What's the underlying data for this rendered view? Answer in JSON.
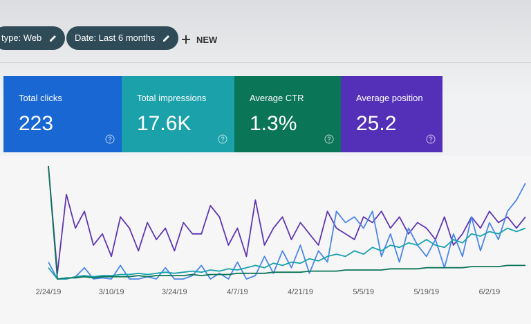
{
  "filters": {
    "type_chip": "type: Web",
    "date_chip": "Date: Last 6 months",
    "new_button": "NEW"
  },
  "metrics": [
    {
      "label": "Total clicks",
      "value": "223",
      "color": "#1967d2"
    },
    {
      "label": "Total impressions",
      "value": "17.6K",
      "color": "#1ba1aa"
    },
    {
      "label": "Average CTR",
      "value": "1.3%",
      "color": "#0b7557"
    },
    {
      "label": "Average position",
      "value": "25.2",
      "color": "#5430b8"
    }
  ],
  "chart_data": {
    "type": "line",
    "categories": [
      "2/24/19",
      null,
      null,
      null,
      null,
      null,
      null,
      "3/10/19",
      null,
      null,
      null,
      null,
      null,
      null,
      "3/24/19",
      null,
      null,
      null,
      null,
      null,
      null,
      "4/7/19",
      null,
      null,
      null,
      null,
      null,
      null,
      "4/21/19",
      null,
      null,
      null,
      null,
      null,
      null,
      "5/5/19",
      null,
      null,
      null,
      null,
      null,
      null,
      "5/19/19",
      null,
      null,
      null,
      null,
      null,
      null,
      "6/2/19",
      null,
      null,
      null,
      null
    ],
    "series": [
      {
        "color": "#5e35b1",
        "values": [
          100,
          5,
          75,
          45,
          60,
          30,
          40,
          20,
          55,
          45,
          25,
          50,
          35,
          45,
          25,
          50,
          40,
          40,
          65,
          55,
          30,
          45,
          20,
          70,
          30,
          45,
          55,
          35,
          50,
          40,
          30,
          60,
          45,
          40,
          35,
          55,
          50,
          60,
          45,
          55,
          40,
          50,
          45,
          35,
          55,
          30,
          40,
          55,
          45,
          60,
          50,
          55,
          45,
          55
        ]
      },
      {
        "color": "#4a86e8",
        "values": [
          15,
          0,
          0,
          2,
          10,
          0,
          1,
          0,
          12,
          0,
          0,
          2,
          0,
          10,
          0,
          0,
          3,
          12,
          0,
          5,
          0,
          15,
          0,
          3,
          20,
          5,
          25,
          10,
          30,
          5,
          25,
          15,
          60,
          50,
          55,
          45,
          60,
          20,
          40,
          15,
          45,
          30,
          20,
          35,
          10,
          40,
          20,
          55,
          25,
          50,
          35,
          60,
          70,
          85
        ]
      },
      {
        "color": "#17a2ad",
        "values": [
          10,
          0,
          0,
          2,
          3,
          2,
          3,
          3,
          4,
          4,
          5,
          4,
          5,
          6,
          5,
          6,
          7,
          6,
          8,
          7,
          9,
          8,
          10,
          12,
          10,
          14,
          12,
          15,
          14,
          18,
          16,
          20,
          22,
          20,
          25,
          22,
          28,
          25,
          30,
          28,
          32,
          30,
          35,
          30,
          28,
          35,
          32,
          40,
          38,
          42,
          40,
          45,
          42,
          45
        ]
      },
      {
        "color": "#0b7557",
        "values": [
          100,
          0,
          1,
          1,
          2,
          1,
          2,
          2,
          2,
          2,
          3,
          2,
          3,
          3,
          3,
          3,
          4,
          3,
          4,
          4,
          4,
          5,
          5,
          5,
          5,
          6,
          6,
          6,
          6,
          7,
          7,
          7,
          7,
          8,
          8,
          8,
          8,
          8,
          9,
          9,
          9,
          9,
          10,
          10,
          10,
          10,
          10,
          11,
          11,
          11,
          11,
          12,
          12,
          12
        ]
      }
    ]
  }
}
